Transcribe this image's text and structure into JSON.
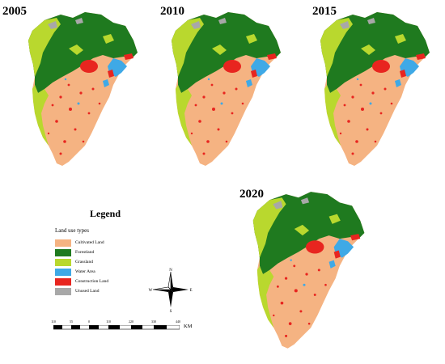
{
  "maps": [
    {
      "year": "2005"
    },
    {
      "year": "2010"
    },
    {
      "year": "2015"
    },
    {
      "year": "2020"
    }
  ],
  "legend": {
    "title": "Legend",
    "subtitle": "Land use types",
    "items": [
      {
        "label": "Cultivated Land",
        "color": "#f5b382"
      },
      {
        "label": "Forestland",
        "color": "#1f7a1f"
      },
      {
        "label": "Grassland",
        "color": "#b9d82e"
      },
      {
        "label": "Water Area",
        "color": "#3fa9e6"
      },
      {
        "label": "Construction Land",
        "color": "#e8251f"
      },
      {
        "label": "Unused Land",
        "color": "#a8a8a8"
      }
    ]
  },
  "compass": {
    "n": "N",
    "s": "S",
    "e": "E",
    "w": "W"
  },
  "scale": {
    "ticks": [
      "110",
      "55",
      "0",
      "110",
      "220",
      "330",
      "440"
    ],
    "unit": "KM"
  }
}
